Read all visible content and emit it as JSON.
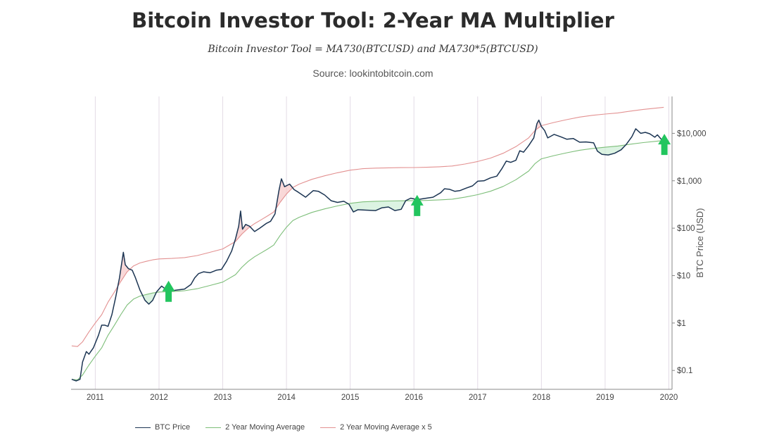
{
  "header": {
    "title": "Bitcoin Investor Tool: 2-Year MA Multiplier",
    "formula": "Bitcoin Investor Tool = MA730(BTCUSD) and MA730*5(BTCUSD)",
    "source": "Source: lookintobitcoin.com"
  },
  "colors": {
    "price": "#1c3553",
    "ma": "#7dbe79",
    "ma5": "#e39191",
    "fill_green": "#cdeed6",
    "fill_red": "#f6c7c7",
    "arrow": "#22c55e",
    "grid": "#e3dbe6",
    "axis": "#888888"
  },
  "chart_data": {
    "type": "line",
    "xlabel": "",
    "ylabel": "BTC Price (USD)",
    "yscale": "log",
    "xlim": [
      2010.62,
      2020.05
    ],
    "ylim": [
      0.04,
      60000
    ],
    "x_ticks": [
      "2011",
      "2012",
      "2013",
      "2014",
      "2015",
      "2016",
      "2017",
      "2018",
      "2019",
      "2020"
    ],
    "y_ticks": [
      {
        "value": 0.1,
        "label": "$0.1"
      },
      {
        "value": 1,
        "label": "$1"
      },
      {
        "value": 10,
        "label": "$10"
      },
      {
        "value": 100,
        "label": "$100"
      },
      {
        "value": 1000,
        "label": "$1,000"
      },
      {
        "value": 10000,
        "label": "$10,000"
      }
    ],
    "grid": "vertical",
    "legend_position": "bottom",
    "series": [
      {
        "name": "BTC Price",
        "key": "price",
        "points": [
          [
            2010.63,
            0.065
          ],
          [
            2010.7,
            0.06
          ],
          [
            2010.76,
            0.065
          ],
          [
            2010.8,
            0.15
          ],
          [
            2010.86,
            0.25
          ],
          [
            2010.9,
            0.22
          ],
          [
            2010.97,
            0.3
          ],
          [
            2011.05,
            0.55
          ],
          [
            2011.1,
            0.9
          ],
          [
            2011.15,
            0.9
          ],
          [
            2011.2,
            0.85
          ],
          [
            2011.26,
            1.5
          ],
          [
            2011.32,
            3.5
          ],
          [
            2011.38,
            9
          ],
          [
            2011.44,
            31
          ],
          [
            2011.47,
            17
          ],
          [
            2011.52,
            14
          ],
          [
            2011.58,
            13
          ],
          [
            2011.63,
            9
          ],
          [
            2011.7,
            5
          ],
          [
            2011.78,
            3
          ],
          [
            2011.84,
            2.5
          ],
          [
            2011.9,
            3
          ],
          [
            2011.96,
            4.5
          ],
          [
            2012.04,
            6
          ],
          [
            2012.12,
            5
          ],
          [
            2012.2,
            4.8
          ],
          [
            2012.3,
            5
          ],
          [
            2012.4,
            5.2
          ],
          [
            2012.5,
            6.5
          ],
          [
            2012.56,
            9
          ],
          [
            2012.62,
            11
          ],
          [
            2012.7,
            12
          ],
          [
            2012.8,
            11.5
          ],
          [
            2012.9,
            13
          ],
          [
            2012.98,
            13.5
          ],
          [
            2013.06,
            20
          ],
          [
            2013.14,
            33
          ],
          [
            2013.2,
            60
          ],
          [
            2013.25,
            110
          ],
          [
            2013.28,
            230
          ],
          [
            2013.31,
            95
          ],
          [
            2013.36,
            120
          ],
          [
            2013.42,
            110
          ],
          [
            2013.5,
            85
          ],
          [
            2013.58,
            100
          ],
          [
            2013.68,
            125
          ],
          [
            2013.75,
            140
          ],
          [
            2013.82,
            200
          ],
          [
            2013.88,
            600
          ],
          [
            2013.92,
            1100
          ],
          [
            2013.97,
            750
          ],
          [
            2014.05,
            850
          ],
          [
            2014.12,
            650
          ],
          [
            2014.18,
            580
          ],
          [
            2014.3,
            450
          ],
          [
            2014.42,
            620
          ],
          [
            2014.5,
            600
          ],
          [
            2014.6,
            500
          ],
          [
            2014.7,
            380
          ],
          [
            2014.8,
            350
          ],
          [
            2014.9,
            370
          ],
          [
            2014.98,
            320
          ],
          [
            2015.05,
            220
          ],
          [
            2015.12,
            245
          ],
          [
            2015.25,
            240
          ],
          [
            2015.4,
            235
          ],
          [
            2015.5,
            270
          ],
          [
            2015.6,
            280
          ],
          [
            2015.7,
            235
          ],
          [
            2015.8,
            250
          ],
          [
            2015.87,
            380
          ],
          [
            2015.95,
            430
          ],
          [
            2016.05,
            400
          ],
          [
            2016.15,
            420
          ],
          [
            2016.3,
            450
          ],
          [
            2016.42,
            560
          ],
          [
            2016.48,
            680
          ],
          [
            2016.56,
            660
          ],
          [
            2016.64,
            600
          ],
          [
            2016.72,
            620
          ],
          [
            2016.82,
            700
          ],
          [
            2016.92,
            780
          ],
          [
            2017.0,
            980
          ],
          [
            2017.1,
            1000
          ],
          [
            2017.2,
            1150
          ],
          [
            2017.3,
            1250
          ],
          [
            2017.38,
            1800
          ],
          [
            2017.45,
            2600
          ],
          [
            2017.52,
            2450
          ],
          [
            2017.6,
            2700
          ],
          [
            2017.66,
            4300
          ],
          [
            2017.72,
            4000
          ],
          [
            2017.8,
            5500
          ],
          [
            2017.88,
            8000
          ],
          [
            2017.93,
            16000
          ],
          [
            2017.96,
            19000
          ],
          [
            2018.0,
            14000
          ],
          [
            2018.05,
            11500
          ],
          [
            2018.1,
            8000
          ],
          [
            2018.2,
            9500
          ],
          [
            2018.3,
            8500
          ],
          [
            2018.4,
            7500
          ],
          [
            2018.5,
            7800
          ],
          [
            2018.6,
            6500
          ],
          [
            2018.7,
            6600
          ],
          [
            2018.82,
            6300
          ],
          [
            2018.88,
            4200
          ],
          [
            2018.95,
            3600
          ],
          [
            2019.05,
            3500
          ],
          [
            2019.15,
            3800
          ],
          [
            2019.25,
            4500
          ],
          [
            2019.33,
            5800
          ],
          [
            2019.42,
            8500
          ],
          [
            2019.48,
            12500
          ],
          [
            2019.56,
            10000
          ],
          [
            2019.63,
            10500
          ],
          [
            2019.7,
            9800
          ],
          [
            2019.78,
            8300
          ],
          [
            2019.82,
            9300
          ],
          [
            2019.88,
            7500
          ],
          [
            2019.92,
            7200
          ]
        ]
      },
      {
        "name": "2 Year Moving Average",
        "key": "ma",
        "points": [
          [
            2010.63,
            0.065
          ],
          [
            2010.72,
            0.063
          ],
          [
            2010.8,
            0.08
          ],
          [
            2010.9,
            0.13
          ],
          [
            2011.0,
            0.2
          ],
          [
            2011.1,
            0.3
          ],
          [
            2011.2,
            0.55
          ],
          [
            2011.3,
            0.9
          ],
          [
            2011.4,
            1.5
          ],
          [
            2011.5,
            2.4
          ],
          [
            2011.6,
            3.2
          ],
          [
            2011.7,
            3.7
          ],
          [
            2011.8,
            4.0
          ],
          [
            2011.9,
            4.3
          ],
          [
            2012.0,
            4.5
          ],
          [
            2012.2,
            4.6
          ],
          [
            2012.4,
            4.8
          ],
          [
            2012.6,
            5.3
          ],
          [
            2012.8,
            6.2
          ],
          [
            2013.0,
            7.3
          ],
          [
            2013.2,
            10.5
          ],
          [
            2013.3,
            15
          ],
          [
            2013.4,
            20
          ],
          [
            2013.5,
            25
          ],
          [
            2013.6,
            30
          ],
          [
            2013.7,
            36
          ],
          [
            2013.8,
            44
          ],
          [
            2013.9,
            70
          ],
          [
            2014.0,
            105
          ],
          [
            2014.1,
            145
          ],
          [
            2014.2,
            170
          ],
          [
            2014.4,
            215
          ],
          [
            2014.6,
            255
          ],
          [
            2014.8,
            295
          ],
          [
            2015.0,
            335
          ],
          [
            2015.2,
            360
          ],
          [
            2015.4,
            370
          ],
          [
            2015.6,
            375
          ],
          [
            2015.8,
            378
          ],
          [
            2016.0,
            380
          ],
          [
            2016.2,
            385
          ],
          [
            2016.4,
            395
          ],
          [
            2016.6,
            410
          ],
          [
            2016.8,
            450
          ],
          [
            2017.0,
            510
          ],
          [
            2017.2,
            600
          ],
          [
            2017.4,
            760
          ],
          [
            2017.6,
            1050
          ],
          [
            2017.8,
            1600
          ],
          [
            2017.9,
            2300
          ],
          [
            2018.0,
            2900
          ],
          [
            2018.2,
            3400
          ],
          [
            2018.4,
            3900
          ],
          [
            2018.6,
            4400
          ],
          [
            2018.8,
            4800
          ],
          [
            2019.0,
            5100
          ],
          [
            2019.2,
            5400
          ],
          [
            2019.4,
            5900
          ],
          [
            2019.6,
            6400
          ],
          [
            2019.8,
            6800
          ],
          [
            2019.92,
            7100
          ]
        ]
      },
      {
        "name": "2 Year Moving Average x 5",
        "key": "ma5",
        "points": [
          [
            2010.63,
            0.33
          ],
          [
            2010.72,
            0.32
          ],
          [
            2010.8,
            0.4
          ],
          [
            2010.9,
            0.65
          ],
          [
            2011.0,
            1.0
          ],
          [
            2011.1,
            1.5
          ],
          [
            2011.2,
            2.75
          ],
          [
            2011.3,
            4.5
          ],
          [
            2011.4,
            7.5
          ],
          [
            2011.5,
            12
          ],
          [
            2011.6,
            16
          ],
          [
            2011.7,
            18.5
          ],
          [
            2011.8,
            20
          ],
          [
            2011.9,
            21.5
          ],
          [
            2012.0,
            22.5
          ],
          [
            2012.2,
            23
          ],
          [
            2012.4,
            24
          ],
          [
            2012.6,
            26.5
          ],
          [
            2012.8,
            31
          ],
          [
            2013.0,
            36.5
          ],
          [
            2013.2,
            52.5
          ],
          [
            2013.3,
            75
          ],
          [
            2013.4,
            100
          ],
          [
            2013.5,
            125
          ],
          [
            2013.6,
            150
          ],
          [
            2013.7,
            180
          ],
          [
            2013.8,
            220
          ],
          [
            2013.9,
            350
          ],
          [
            2014.0,
            525
          ],
          [
            2014.1,
            725
          ],
          [
            2014.2,
            850
          ],
          [
            2014.4,
            1075
          ],
          [
            2014.6,
            1275
          ],
          [
            2014.8,
            1475
          ],
          [
            2015.0,
            1675
          ],
          [
            2015.2,
            1800
          ],
          [
            2015.4,
            1850
          ],
          [
            2015.6,
            1875
          ],
          [
            2015.8,
            1890
          ],
          [
            2016.0,
            1900
          ],
          [
            2016.2,
            1925
          ],
          [
            2016.4,
            1975
          ],
          [
            2016.6,
            2050
          ],
          [
            2016.8,
            2250
          ],
          [
            2017.0,
            2550
          ],
          [
            2017.2,
            3000
          ],
          [
            2017.4,
            3800
          ],
          [
            2017.6,
            5250
          ],
          [
            2017.8,
            8000
          ],
          [
            2017.9,
            11500
          ],
          [
            2018.0,
            14500
          ],
          [
            2018.2,
            17000
          ],
          [
            2018.4,
            19500
          ],
          [
            2018.6,
            22000
          ],
          [
            2018.8,
            24000
          ],
          [
            2019.0,
            25500
          ],
          [
            2019.2,
            27000
          ],
          [
            2019.4,
            29500
          ],
          [
            2019.6,
            32000
          ],
          [
            2019.8,
            34000
          ],
          [
            2019.92,
            35500
          ]
        ]
      }
    ],
    "annotations": [
      {
        "type": "arrow-up",
        "x": 2012.15,
        "y": 2.8
      },
      {
        "type": "arrow-up",
        "x": 2016.05,
        "y": 180
      },
      {
        "type": "arrow-up",
        "x": 2019.93,
        "y": 3500
      }
    ]
  }
}
